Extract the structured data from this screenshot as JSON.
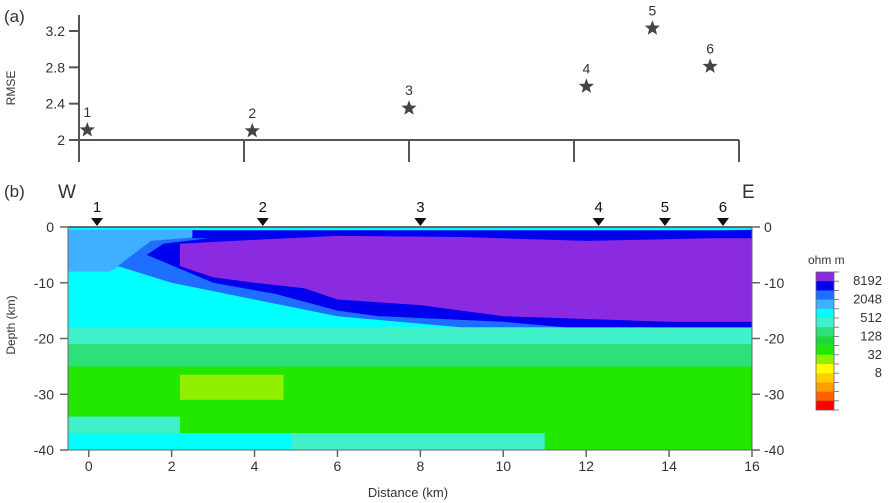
{
  "panel_a_label": "(a)",
  "panel_b_label": "(b)",
  "chart_data": [
    {
      "type": "scatter",
      "marker": "star",
      "ylabel": "RMSE",
      "yticks": [
        2,
        2.4,
        2.8,
        3.2
      ],
      "ytick_labels": [
        "2",
        "2.4",
        "2.8",
        "3.2"
      ],
      "ylim": [
        2,
        3.4
      ],
      "xlim": [
        0,
        16
      ],
      "xticks": [
        0,
        4,
        8,
        12,
        16
      ],
      "points": [
        {
          "label": "1",
          "x": 0.2,
          "y": 2.11
        },
        {
          "label": "2",
          "x": 4.2,
          "y": 2.1
        },
        {
          "label": "3",
          "x": 8.0,
          "y": 2.35
        },
        {
          "label": "4",
          "x": 12.3,
          "y": 2.59
        },
        {
          "label": "5",
          "x": 13.9,
          "y": 3.23
        },
        {
          "label": "6",
          "x": 15.3,
          "y": 2.81
        }
      ],
      "grid": false
    },
    {
      "type": "heatmap",
      "west_label": "W",
      "east_label": "E",
      "xlabel": "Distance (km)",
      "ylabel": "Depth (km)",
      "xlim": [
        -0.5,
        16
      ],
      "ylim": [
        -40,
        0
      ],
      "xticks": [
        0,
        2,
        4,
        6,
        8,
        10,
        12,
        14,
        16
      ],
      "xtick_labels": [
        "0",
        "2",
        "4",
        "6",
        "8",
        "10",
        "12",
        "14",
        "16"
      ],
      "yticks": [
        0,
        -10,
        -20,
        -30,
        -40
      ],
      "ytick_labels": [
        "0",
        "-10",
        "-20",
        "-30",
        "-40"
      ],
      "stations": [
        {
          "label": "1",
          "x": 0.2
        },
        {
          "label": "2",
          "x": 4.2
        },
        {
          "label": "3",
          "x": 8.0
        },
        {
          "label": "4",
          "x": 12.3
        },
        {
          "label": "5",
          "x": 13.9
        },
        {
          "label": "6",
          "x": 15.3
        }
      ],
      "colorbar": {
        "unit": "ohm m",
        "tick_labels": [
          "8192",
          "2048",
          "512",
          "128",
          "32",
          "8"
        ],
        "colors": [
          "#8a2be2",
          "#0000ee",
          "#1e6fff",
          "#3fb0ff",
          "#00ffff",
          "#3ff0c8",
          "#2ee07a",
          "#1ed83c",
          "#22e800",
          "#90f000",
          "#ffff00",
          "#ffd000",
          "#ffa000",
          "#ff6000",
          "#ff0000"
        ]
      },
      "regions": [
        {
          "name": "background",
          "color": "#00ffff",
          "x": [
            -0.5,
            16
          ],
          "depth": [
            0,
            -40
          ]
        },
        {
          "name": "upper-left-light-blue",
          "color": "#3fb0ff",
          "poly": [
            [
              -0.5,
              -0.5
            ],
            [
              2.5,
              -0.5
            ],
            [
              4,
              -1.5
            ],
            [
              1.5,
              -4
            ],
            [
              0.5,
              -8
            ],
            [
              -0.5,
              -8
            ]
          ]
        },
        {
          "name": "mid-blue-band",
          "color": "#1e6fff",
          "poly": [
            [
              0.7,
              -7
            ],
            [
              1.5,
              -2.5
            ],
            [
              4,
              -1
            ],
            [
              8,
              -1.2
            ],
            [
              12,
              -1.5
            ],
            [
              16,
              -1.2
            ],
            [
              16,
              -20
            ],
            [
              13.5,
              -20
            ],
            [
              11.5,
              -18
            ],
            [
              9,
              -18
            ],
            [
              6,
              -16
            ],
            [
              4,
              -13
            ],
            [
              2,
              -10
            ]
          ]
        },
        {
          "name": "deep-blue-band",
          "color": "#0000ee",
          "poly": [
            [
              1.4,
              -5
            ],
            [
              1.8,
              -3
            ],
            [
              4,
              -1
            ],
            [
              8,
              -1
            ],
            [
              12,
              -1.3
            ],
            [
              16,
              -0.5
            ],
            [
              16,
              -20
            ],
            [
              13.5,
              -20
            ],
            [
              13.5,
              -18
            ],
            [
              11.5,
              -18
            ],
            [
              10,
              -17
            ],
            [
              7,
              -16
            ],
            [
              6,
              -15
            ],
            [
              4.5,
              -12
            ],
            [
              3,
              -10
            ]
          ]
        },
        {
          "name": "top-thin-blue",
          "color": "#0000ee",
          "poly": [
            [
              2.5,
              -0.6
            ],
            [
              16,
              -0.6
            ],
            [
              16,
              -2
            ],
            [
              2.5,
              -2
            ]
          ]
        },
        {
          "name": "resistive-body",
          "color": "#8a2be2",
          "poly": [
            [
              2.2,
              -3
            ],
            [
              3.5,
              -2.5
            ],
            [
              6,
              -1.6
            ],
            [
              9,
              -1.8
            ],
            [
              12,
              -2.5
            ],
            [
              15,
              -2
            ],
            [
              16,
              -2
            ],
            [
              16,
              -17
            ],
            [
              14,
              -17
            ],
            [
              12,
              -16.5
            ],
            [
              10,
              -16
            ],
            [
              8,
              -14
            ],
            [
              6,
              -13
            ],
            [
              5.2,
              -11
            ],
            [
              4,
              -10
            ],
            [
              3,
              -9
            ],
            [
              2.2,
              -7
            ]
          ]
        },
        {
          "name": "upper-cyan",
          "color": "#3ff0c8",
          "x": [
            -0.5,
            16
          ],
          "depth": [
            -18,
            -21
          ]
        },
        {
          "name": "green-teal",
          "color": "#2ee07a",
          "x": [
            -0.5,
            16
          ],
          "depth": [
            -21,
            -25
          ]
        },
        {
          "name": "green-main",
          "color": "#22e800",
          "x": [
            -0.5,
            16
          ],
          "depth": [
            -25,
            -37
          ]
        },
        {
          "name": "yellow-green-patch",
          "color": "#90f000",
          "x": [
            2.2,
            4.7
          ],
          "depth": [
            -26.5,
            -31
          ]
        },
        {
          "name": "lower-teal",
          "color": "#3ff0c8",
          "x": [
            -0.5,
            2.2
          ],
          "depth": [
            -34,
            -37
          ]
        },
        {
          "name": "bottom-cyan-left",
          "color": "#00ffff",
          "x": [
            -0.5,
            4.9
          ],
          "depth": [
            -37,
            -40
          ]
        },
        {
          "name": "bottom-teal-right",
          "color": "#3ff0c8",
          "x": [
            4.9,
            11
          ],
          "depth": [
            -37,
            -40
          ]
        },
        {
          "name": "bottom-green-far",
          "color": "#22e800",
          "x": [
            11,
            16
          ],
          "depth": [
            -36,
            -40
          ]
        }
      ]
    }
  ]
}
